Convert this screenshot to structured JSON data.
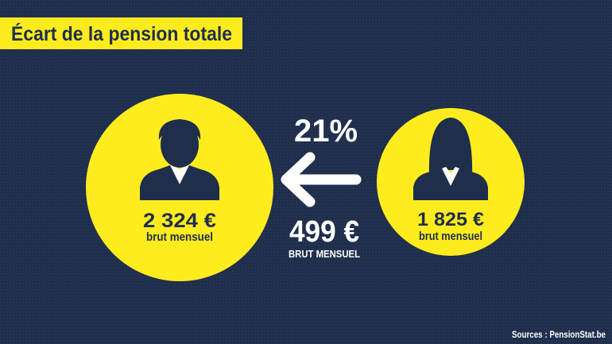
{
  "header": {
    "title": "Écart de la pension totale"
  },
  "men": {
    "amount": "2 324 €",
    "label": "brut mensuel"
  },
  "gap": {
    "percent": "21%",
    "amount": "499 €",
    "label": "BRUT MENSUEL"
  },
  "women": {
    "amount": "1 825 €",
    "label": "brut mensuel"
  },
  "footer": {
    "source": "Sources : PensionStat.be"
  }
}
